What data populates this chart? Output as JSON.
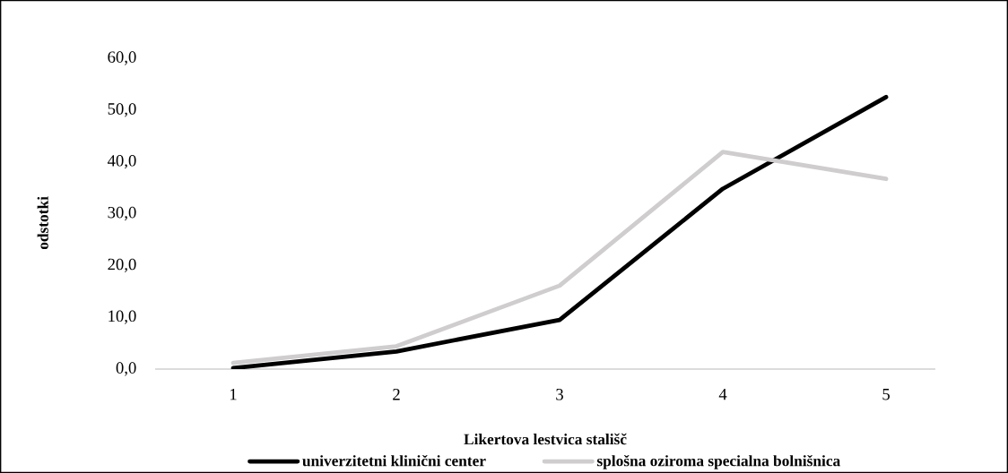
{
  "chart_data": {
    "type": "line",
    "xlabel": "Likertova lestvica stališč",
    "ylabel": "odstotki",
    "categories": [
      "1",
      "2",
      "3",
      "4",
      "5"
    ],
    "series": [
      {
        "name": "univerzitetni klinični center",
        "color": "#000000",
        "values": [
          0.2,
          3.4,
          9.5,
          34.8,
          52.5
        ]
      },
      {
        "name": "splošna oziroma specialna bolnišnica",
        "color": "#cfcdcd",
        "values": [
          1.2,
          4.4,
          16.1,
          41.9,
          36.7
        ]
      }
    ],
    "ylim": [
      0,
      60
    ],
    "yticks": [
      {
        "value": 0,
        "label": "0,0"
      },
      {
        "value": 10,
        "label": "10,0"
      },
      {
        "value": 20,
        "label": "20,0"
      },
      {
        "value": 30,
        "label": "30,0"
      },
      {
        "value": 40,
        "label": "40,0"
      },
      {
        "value": 50,
        "label": "50,0"
      },
      {
        "value": 60,
        "label": "60,0"
      }
    ],
    "legend": "bottom",
    "marker": "none",
    "line_style": "solid"
  }
}
